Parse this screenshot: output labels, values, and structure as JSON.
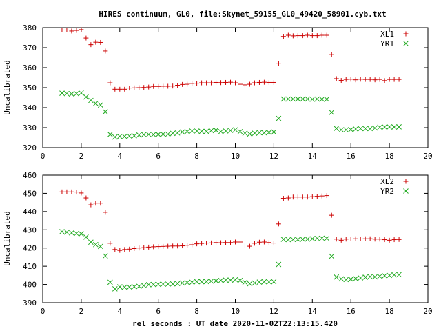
{
  "page_title": "HIRES continuum, GL0, file:Skynet_59155_GL0_49420_58901.cyb.txt",
  "x_axis_label": "rel seconds : UT date 2020-11-02T22:13:15.420",
  "colors": {
    "series1": "#cc0000",
    "series2": "#22aa22",
    "axis": "#000000"
  },
  "chart_data": [
    {
      "type": "scatter",
      "title": "HIRES continuum, GL0, file:Skynet_59155_GL0_49420_58901.cyb.txt",
      "xlabel": "",
      "ylabel": "Uncalibrated",
      "xlim": [
        0,
        20
      ],
      "ylim": [
        320,
        380
      ],
      "xticks": [
        "0",
        "2",
        "4",
        "6",
        "8",
        "10",
        "12",
        "14",
        "16",
        "18",
        "20"
      ],
      "yticks": [
        "320",
        "330",
        "340",
        "350",
        "360",
        "370",
        "380"
      ],
      "legend_position": "top-right",
      "grid": false,
      "series": [
        {
          "name": "XL1",
          "marker": "plus",
          "color": "#cc0000",
          "x": [
            1.0,
            1.25,
            1.5,
            1.75,
            2.0,
            2.25,
            2.5,
            2.75,
            3.0,
            3.25,
            3.5,
            3.75,
            4.0,
            4.25,
            4.5,
            4.75,
            5.0,
            5.25,
            5.5,
            5.75,
            6.0,
            6.25,
            6.5,
            6.75,
            7.0,
            7.25,
            7.5,
            7.75,
            8.0,
            8.25,
            8.5,
            8.75,
            9.0,
            9.25,
            9.5,
            9.75,
            10.0,
            10.25,
            10.5,
            10.75,
            11.0,
            11.25,
            11.5,
            11.75,
            12.0,
            12.25,
            12.5,
            12.75,
            13.0,
            13.25,
            13.5,
            13.75,
            14.0,
            14.25,
            14.5,
            14.75,
            15.0,
            15.25,
            15.5,
            15.75,
            16.0,
            16.25,
            16.5,
            16.75,
            17.0,
            17.25,
            17.5,
            17.75,
            18.0,
            18.25,
            18.5
          ],
          "y": [
            378.8,
            378.8,
            378.3,
            378.6,
            379.0,
            374.8,
            371.5,
            372.7,
            372.6,
            368.3,
            352.4,
            349.2,
            349.2,
            349.2,
            349.8,
            349.9,
            350.0,
            350.1,
            350.3,
            350.6,
            350.6,
            350.7,
            350.7,
            350.8,
            351.2,
            351.6,
            351.7,
            352.1,
            352.2,
            352.4,
            352.4,
            352.4,
            352.6,
            352.5,
            352.6,
            352.7,
            352.4,
            351.7,
            351.4,
            351.7,
            352.4,
            352.6,
            352.7,
            352.6,
            352.6,
            362.2,
            375.6,
            376.2,
            375.9,
            376.0,
            376.0,
            376.2,
            376.0,
            376.0,
            376.2,
            376.2,
            366.6,
            354.5,
            353.6,
            354.1,
            354.2,
            353.9,
            354.2,
            354.1,
            354.1,
            353.9,
            354.1,
            353.5,
            354.1,
            354.1,
            354.1
          ]
        },
        {
          "name": "YR1",
          "marker": "cross",
          "color": "#22aa22",
          "x": [
            1.0,
            1.25,
            1.5,
            1.75,
            2.0,
            2.25,
            2.5,
            2.75,
            3.0,
            3.25,
            3.5,
            3.75,
            4.0,
            4.25,
            4.5,
            4.75,
            5.0,
            5.25,
            5.5,
            5.75,
            6.0,
            6.25,
            6.5,
            6.75,
            7.0,
            7.25,
            7.5,
            7.75,
            8.0,
            8.25,
            8.5,
            8.75,
            9.0,
            9.25,
            9.5,
            9.75,
            10.0,
            10.25,
            10.5,
            10.75,
            11.0,
            11.25,
            11.5,
            11.75,
            12.0,
            12.25,
            12.5,
            12.75,
            13.0,
            13.25,
            13.5,
            13.75,
            14.0,
            14.25,
            14.5,
            14.75,
            15.0,
            15.25,
            15.5,
            15.75,
            16.0,
            16.25,
            16.5,
            16.75,
            17.0,
            17.25,
            17.5,
            17.75,
            18.0,
            18.25,
            18.5
          ],
          "y": [
            347.2,
            347.0,
            346.8,
            347.0,
            347.3,
            345.3,
            343.6,
            342.1,
            341.3,
            337.9,
            326.6,
            325.3,
            325.6,
            325.6,
            325.8,
            325.9,
            326.3,
            326.5,
            326.6,
            326.5,
            326.6,
            326.7,
            326.7,
            327.1,
            327.3,
            327.8,
            328.0,
            328.3,
            328.3,
            328.1,
            328.1,
            328.5,
            328.7,
            328.0,
            328.3,
            328.6,
            328.9,
            328.0,
            327.2,
            326.8,
            327.2,
            327.5,
            327.4,
            327.6,
            327.8,
            334.6,
            344.3,
            344.3,
            344.3,
            344.3,
            344.3,
            344.3,
            344.2,
            344.3,
            344.2,
            344.2,
            337.6,
            329.6,
            328.9,
            328.9,
            329.0,
            329.3,
            329.5,
            329.5,
            329.5,
            329.8,
            330.2,
            330.3,
            330.4,
            330.3,
            330.4
          ]
        }
      ]
    },
    {
      "type": "scatter",
      "title": "",
      "xlabel": "rel seconds : UT date 2020-11-02T22:13:15.420",
      "ylabel": "Uncalibrated",
      "xlim": [
        0,
        20
      ],
      "ylim": [
        390,
        460
      ],
      "xticks": [
        "0",
        "2",
        "4",
        "6",
        "8",
        "10",
        "12",
        "14",
        "16",
        "18",
        "20"
      ],
      "yticks": [
        "390",
        "400",
        "410",
        "420",
        "430",
        "440",
        "450",
        "460"
      ],
      "legend_position": "top-right",
      "grid": false,
      "series": [
        {
          "name": "XL2",
          "marker": "plus",
          "color": "#cc0000",
          "x": [
            1.0,
            1.25,
            1.5,
            1.75,
            2.0,
            2.25,
            2.5,
            2.75,
            3.0,
            3.25,
            3.5,
            3.75,
            4.0,
            4.25,
            4.5,
            4.75,
            5.0,
            5.25,
            5.5,
            5.75,
            6.0,
            6.25,
            6.5,
            6.75,
            7.0,
            7.25,
            7.5,
            7.75,
            8.0,
            8.25,
            8.5,
            8.75,
            9.0,
            9.25,
            9.5,
            9.75,
            10.0,
            10.25,
            10.5,
            10.75,
            11.0,
            11.25,
            11.5,
            11.75,
            12.0,
            12.25,
            12.5,
            12.75,
            13.0,
            13.25,
            13.5,
            13.75,
            14.0,
            14.25,
            14.5,
            14.75,
            15.0,
            15.25,
            15.5,
            15.75,
            16.0,
            16.25,
            16.5,
            16.75,
            17.0,
            17.25,
            17.5,
            17.75,
            18.0,
            18.25,
            18.5
          ],
          "y": [
            450.8,
            450.8,
            450.8,
            450.7,
            450.2,
            447.5,
            443.7,
            444.6,
            444.6,
            439.6,
            422.6,
            419.2,
            418.7,
            419.2,
            419.4,
            419.7,
            420.0,
            420.2,
            420.5,
            420.7,
            420.8,
            420.9,
            421.0,
            421.1,
            421.1,
            421.2,
            421.5,
            421.8,
            422.3,
            422.5,
            422.7,
            422.8,
            423.0,
            422.9,
            423.0,
            423.0,
            423.3,
            423.3,
            421.6,
            421.0,
            422.6,
            423.2,
            423.3,
            423.0,
            422.7,
            433.2,
            447.3,
            447.5,
            448.0,
            448.0,
            448.0,
            448.0,
            448.2,
            448.4,
            448.6,
            448.8,
            438.0,
            424.9,
            424.3,
            424.9,
            425.0,
            425.1,
            425.0,
            425.1,
            425.1,
            424.9,
            424.9,
            424.6,
            424.3,
            424.6,
            424.7
          ]
        },
        {
          "name": "YR2",
          "marker": "cross",
          "color": "#22aa22",
          "x": [
            1.0,
            1.25,
            1.5,
            1.75,
            2.0,
            2.25,
            2.5,
            2.75,
            3.0,
            3.25,
            3.5,
            3.75,
            4.0,
            4.25,
            4.5,
            4.75,
            5.0,
            5.25,
            5.5,
            5.75,
            6.0,
            6.25,
            6.5,
            6.75,
            7.0,
            7.25,
            7.5,
            7.75,
            8.0,
            8.25,
            8.5,
            8.75,
            9.0,
            9.25,
            9.5,
            9.75,
            10.0,
            10.25,
            10.5,
            10.75,
            11.0,
            11.25,
            11.5,
            11.75,
            12.0,
            12.25,
            12.5,
            12.75,
            13.0,
            13.25,
            13.5,
            13.75,
            14.0,
            14.25,
            14.5,
            14.75,
            15.0,
            15.25,
            15.5,
            15.75,
            16.0,
            16.25,
            16.5,
            16.75,
            17.0,
            17.25,
            17.5,
            17.75,
            18.0,
            18.25,
            18.5
          ],
          "y": [
            429.0,
            428.7,
            428.3,
            428.0,
            427.8,
            426.0,
            423.2,
            421.9,
            420.9,
            415.7,
            401.2,
            397.6,
            398.7,
            398.5,
            398.6,
            398.8,
            399.0,
            399.4,
            399.9,
            400.0,
            400.1,
            400.2,
            400.2,
            400.3,
            400.5,
            400.8,
            401.0,
            401.2,
            401.6,
            401.5,
            401.6,
            401.8,
            402.0,
            402.2,
            402.4,
            402.4,
            402.6,
            402.2,
            401.2,
            400.4,
            400.8,
            401.3,
            401.5,
            401.4,
            401.5,
            411.0,
            424.8,
            424.6,
            424.7,
            424.7,
            424.8,
            424.9,
            425.1,
            425.3,
            425.4,
            425.3,
            415.5,
            404.1,
            403.1,
            402.7,
            402.9,
            403.2,
            403.6,
            404.0,
            404.3,
            404.2,
            404.5,
            404.8,
            405.0,
            405.3,
            405.4
          ]
        }
      ]
    }
  ]
}
